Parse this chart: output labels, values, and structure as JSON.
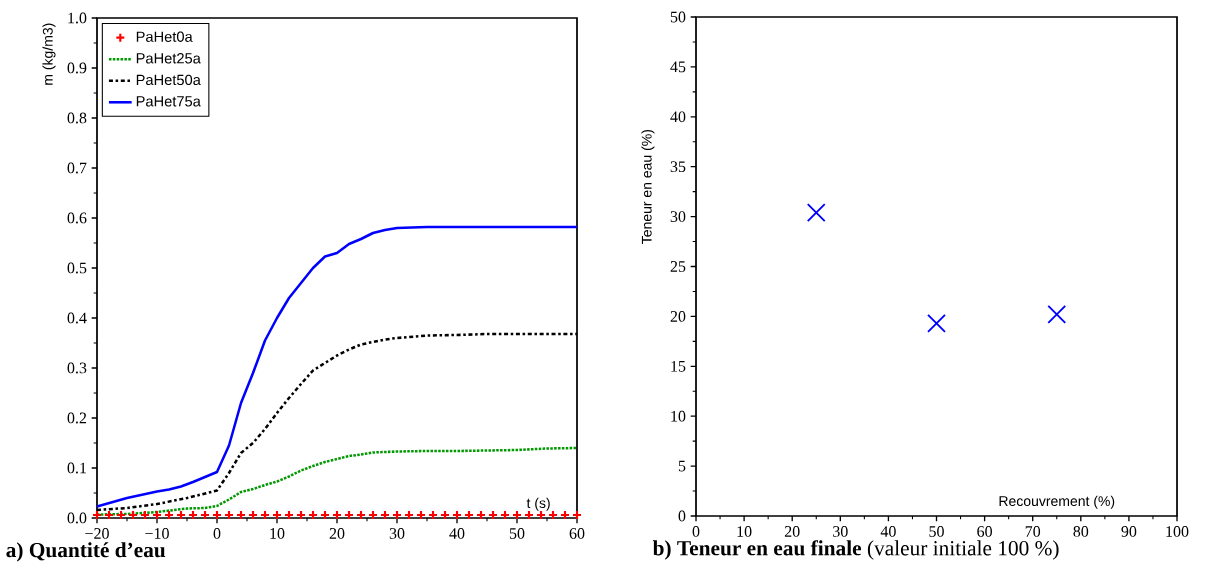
{
  "chart_data": [
    {
      "type": "line",
      "title": "**a) Quantité d’eau**",
      "xlabel": "t (s)",
      "ylabel": "m (kg/m3)",
      "xlim": [
        -20,
        60
      ],
      "xticks": [
        {
          "value": -20,
          "label": "−20"
        },
        {
          "value": -10,
          "label": "−10"
        },
        0,
        10,
        20,
        30,
        40,
        50,
        60
      ],
      "ylim": [
        0,
        1
      ],
      "yticks": [
        {
          "value": 0,
          "label": "0.0"
        },
        0.1,
        0.2,
        0.3,
        0.4,
        0.5,
        0.6,
        0.7,
        0.8,
        0.9,
        {
          "value": 1,
          "label": "1.0"
        }
      ],
      "legend": "top left",
      "series": [
        {
          "name": "PaHet0a",
          "type": "scatter",
          "marker": "plus",
          "color": "#ff0000",
          "x": [
            -20,
            -18,
            -16,
            -14,
            -12,
            -10,
            -8,
            -6,
            -4,
            -2,
            0,
            2,
            4,
            6,
            8,
            10,
            12,
            14,
            16,
            18,
            20,
            22,
            24,
            26,
            28,
            30,
            32,
            34,
            36,
            38,
            40,
            42,
            44,
            46,
            48,
            50,
            52,
            54,
            56,
            58,
            60
          ],
          "values": [
            0.006,
            0.006,
            0.006,
            0.006,
            0.006,
            0.006,
            0.006,
            0.006,
            0.006,
            0.006,
            0.006,
            0.006,
            0.006,
            0.006,
            0.006,
            0.006,
            0.006,
            0.006,
            0.006,
            0.006,
            0.006,
            0.006,
            0.006,
            0.006,
            0.006,
            0.006,
            0.006,
            0.006,
            0.006,
            0.006,
            0.006,
            0.006,
            0.006,
            0.006,
            0.006,
            0.006,
            0.006,
            0.006,
            0.006,
            0.006,
            0.006
          ]
        },
        {
          "name": "PaHet25a",
          "line_style": "dotted",
          "color": "#009900",
          "x": [
            -20,
            -15,
            -10,
            -5,
            -2,
            0,
            2,
            4,
            6,
            8,
            10,
            12,
            14,
            16,
            18,
            20,
            22,
            24,
            26,
            30,
            35,
            40,
            50,
            55,
            60
          ],
          "values": [
            0.007,
            0.008,
            0.012,
            0.019,
            0.02,
            0.024,
            0.037,
            0.052,
            0.058,
            0.066,
            0.073,
            0.083,
            0.095,
            0.104,
            0.112,
            0.118,
            0.124,
            0.127,
            0.131,
            0.133,
            0.134,
            0.134,
            0.136,
            0.139,
            0.14
          ]
        },
        {
          "name": "PaHet50a",
          "line_style": "dashdot",
          "color": "#000000",
          "x": [
            -20,
            -15,
            -10,
            -5,
            0,
            2,
            4,
            6,
            8,
            10,
            12,
            14,
            16,
            18,
            20,
            22,
            24,
            26,
            28,
            30,
            35,
            40,
            45,
            60
          ],
          "values": [
            0.016,
            0.02,
            0.028,
            0.04,
            0.055,
            0.09,
            0.13,
            0.15,
            0.178,
            0.21,
            0.24,
            0.268,
            0.295,
            0.31,
            0.325,
            0.337,
            0.347,
            0.352,
            0.357,
            0.36,
            0.365,
            0.366,
            0.368,
            0.368
          ]
        },
        {
          "name": "PaHet75a",
          "line_style": "solid",
          "color": "#0000ff",
          "x": [
            -20,
            -15,
            -10,
            -8,
            -6,
            -4,
            -2,
            0,
            2,
            4,
            6,
            8,
            10,
            12,
            14,
            16,
            18,
            20,
            22,
            24,
            26,
            28,
            30,
            35,
            40,
            60
          ],
          "values": [
            0.023,
            0.04,
            0.053,
            0.057,
            0.063,
            0.072,
            0.082,
            0.092,
            0.145,
            0.23,
            0.29,
            0.355,
            0.4,
            0.44,
            0.47,
            0.5,
            0.523,
            0.53,
            0.548,
            0.558,
            0.57,
            0.576,
            0.58,
            0.582,
            0.582,
            0.582
          ]
        }
      ]
    },
    {
      "type": "scatter",
      "title": "**b) Teneur en eau finale** (valeur initiale 100 %)",
      "xlabel": "Recouvrement (%)",
      "ylabel": "Teneur en eau (%)",
      "xlim": [
        0,
        100
      ],
      "xticks": [
        0,
        10,
        20,
        30,
        40,
        50,
        60,
        70,
        80,
        90,
        100
      ],
      "ylim": [
        0,
        50
      ],
      "yticks": [
        0,
        5,
        10,
        15,
        20,
        25,
        30,
        35,
        40,
        45,
        50
      ],
      "series": [
        {
          "marker": "cross",
          "color": "#0000ff",
          "x": [
            25,
            50,
            75
          ],
          "values": [
            30.4,
            19.3,
            20.2
          ]
        }
      ]
    }
  ]
}
